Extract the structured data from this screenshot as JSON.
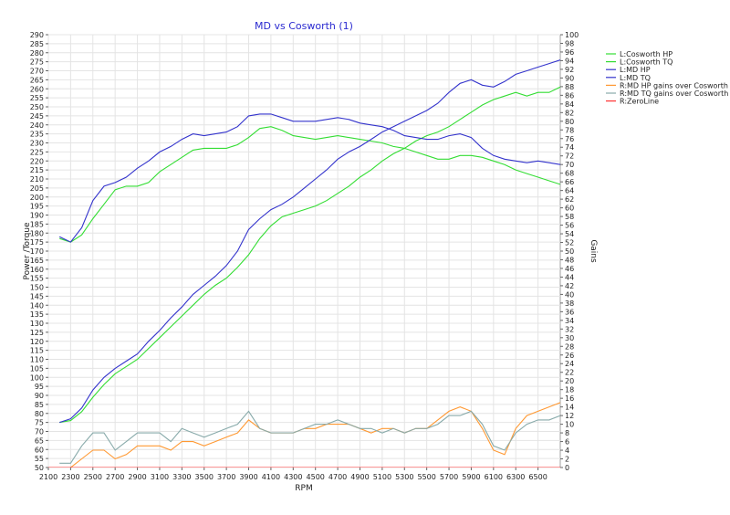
{
  "chart_data": {
    "type": "line",
    "title": "MD vs Cosworth (1)",
    "xlabel": "RPM",
    "ylabel_left": "Power /Torque",
    "ylabel_right": "Gains",
    "xlim": [
      2100,
      6700
    ],
    "ylim_left": [
      50,
      290
    ],
    "ylim_right": [
      0,
      100
    ],
    "x_ticks": [
      2100,
      2300,
      2500,
      2700,
      2900,
      3100,
      3300,
      3500,
      3700,
      3900,
      4100,
      4300,
      4500,
      4700,
      4900,
      5100,
      5300,
      5500,
      5700,
      5900,
      6100,
      6300,
      6500
    ],
    "left_tick_step": 5,
    "right_tick_step": 2,
    "grid": true,
    "legend_position": "right",
    "legend_entries": [
      "L:Cosworth HP",
      "L:Cosworth TQ",
      "L:MD HP",
      "L:MD TQ",
      "R:MD HP gains over Cosworth",
      "R:MD TQ gains over Cosworth",
      "R:ZeroLine"
    ],
    "series": [
      {
        "name": "L:Cosworth HP",
        "axis": "left",
        "color": "#33dd33",
        "x": [
          2200,
          2300,
          2400,
          2500,
          2600,
          2700,
          2800,
          2900,
          3000,
          3100,
          3200,
          3300,
          3400,
          3500,
          3600,
          3700,
          3800,
          3900,
          4000,
          4100,
          4200,
          4300,
          4400,
          4500,
          4600,
          4700,
          4800,
          4900,
          5000,
          5100,
          5200,
          5300,
          5400,
          5500,
          5600,
          5700,
          5800,
          5900,
          6000,
          6100,
          6200,
          6300,
          6400,
          6500,
          6600,
          6700
        ],
        "y": [
          75,
          76,
          81,
          89,
          96,
          102,
          106,
          110,
          116,
          122,
          128,
          134,
          140,
          146,
          151,
          155,
          161,
          168,
          177,
          184,
          189,
          191,
          193,
          195,
          198,
          202,
          206,
          211,
          215,
          220,
          224,
          227,
          231,
          234,
          236,
          239,
          243,
          247,
          251,
          254,
          256,
          258,
          256,
          258,
          258,
          261
        ]
      },
      {
        "name": "L:Cosworth TQ",
        "axis": "left",
        "color": "#33dd33",
        "x": [
          2200,
          2300,
          2400,
          2500,
          2600,
          2700,
          2800,
          2900,
          3000,
          3100,
          3200,
          3300,
          3400,
          3500,
          3600,
          3700,
          3800,
          3900,
          4000,
          4100,
          4200,
          4300,
          4400,
          4500,
          4600,
          4700,
          4800,
          4900,
          5000,
          5100,
          5200,
          5300,
          5400,
          5500,
          5600,
          5700,
          5800,
          5900,
          6000,
          6100,
          6200,
          6300,
          6400,
          6500,
          6600,
          6700
        ],
        "y": [
          177,
          175,
          179,
          188,
          196,
          204,
          206,
          206,
          208,
          214,
          218,
          222,
          226,
          227,
          227,
          227,
          229,
          233,
          238,
          239,
          237,
          234,
          233,
          232,
          233,
          234,
          233,
          232,
          231,
          230,
          228,
          227,
          225,
          223,
          221,
          221,
          223,
          223,
          222,
          220,
          218,
          215,
          213,
          211,
          209,
          207
        ]
      },
      {
        "name": "L:MD HP",
        "axis": "left",
        "color": "#3333cc",
        "x": [
          2200,
          2300,
          2400,
          2500,
          2600,
          2700,
          2800,
          2900,
          3000,
          3100,
          3200,
          3300,
          3400,
          3500,
          3600,
          3700,
          3800,
          3900,
          4000,
          4100,
          4200,
          4300,
          4400,
          4500,
          4600,
          4700,
          4800,
          4900,
          5000,
          5100,
          5200,
          5300,
          5400,
          5500,
          5600,
          5700,
          5800,
          5900,
          6000,
          6100,
          6200,
          6300,
          6400,
          6500,
          6600,
          6700
        ],
        "y": [
          75,
          77,
          83,
          93,
          100,
          105,
          109,
          113,
          120,
          126,
          133,
          139,
          146,
          151,
          156,
          162,
          170,
          182,
          188,
          193,
          196,
          200,
          205,
          210,
          215,
          221,
          225,
          228,
          232,
          236,
          239,
          242,
          245,
          248,
          252,
          258,
          263,
          265,
          262,
          261,
          264,
          268,
          270,
          272,
          274,
          276
        ]
      },
      {
        "name": "L:MD TQ",
        "axis": "left",
        "color": "#3333cc",
        "x": [
          2200,
          2300,
          2400,
          2500,
          2600,
          2700,
          2800,
          2900,
          3000,
          3100,
          3200,
          3300,
          3400,
          3500,
          3600,
          3700,
          3800,
          3900,
          4000,
          4100,
          4200,
          4300,
          4400,
          4500,
          4600,
          4700,
          4800,
          4900,
          5000,
          5100,
          5200,
          5300,
          5400,
          5500,
          5600,
          5700,
          5800,
          5900,
          6000,
          6100,
          6200,
          6300,
          6400,
          6500,
          6600,
          6700
        ],
        "y": [
          178,
          175,
          183,
          198,
          206,
          208,
          211,
          216,
          220,
          225,
          228,
          232,
          235,
          234,
          235,
          236,
          239,
          245,
          246,
          246,
          244,
          242,
          242,
          242,
          243,
          244,
          243,
          241,
          240,
          239,
          237,
          234,
          233,
          232,
          232,
          234,
          235,
          233,
          227,
          223,
          221,
          220,
          219,
          220,
          219,
          218
        ]
      },
      {
        "name": "R:MD HP gains over Cosworth",
        "axis": "right",
        "color": "#ff9933",
        "x": [
          2200,
          2300,
          2400,
          2500,
          2600,
          2700,
          2800,
          2900,
          3000,
          3100,
          3200,
          3300,
          3400,
          3500,
          3600,
          3700,
          3800,
          3900,
          4000,
          4100,
          4200,
          4300,
          4400,
          4500,
          4600,
          4700,
          4800,
          4900,
          5000,
          5100,
          5200,
          5300,
          5400,
          5500,
          5600,
          5700,
          5800,
          5900,
          6000,
          6100,
          6200,
          6300,
          6400,
          6500,
          6600,
          6700
        ],
        "y": [
          -1,
          0,
          2,
          4,
          4,
          2,
          3,
          5,
          5,
          5,
          4,
          6,
          6,
          5,
          6,
          7,
          8,
          11,
          9,
          8,
          8,
          8,
          9,
          9,
          10,
          10,
          10,
          9,
          8,
          9,
          9,
          8,
          9,
          9,
          11,
          13,
          14,
          13,
          9,
          4,
          3,
          9,
          12,
          13,
          14,
          15
        ]
      },
      {
        "name": "R:MD TQ gains over Cosworth",
        "axis": "right",
        "color": "#88aaaa",
        "x": [
          2200,
          2300,
          2400,
          2500,
          2600,
          2700,
          2800,
          2900,
          3000,
          3100,
          3200,
          3300,
          3400,
          3500,
          3600,
          3700,
          3800,
          3900,
          4000,
          4100,
          4200,
          4300,
          4400,
          4500,
          4600,
          4700,
          4800,
          4900,
          5000,
          5100,
          5200,
          5300,
          5400,
          5500,
          5600,
          5700,
          5800,
          5900,
          6000,
          6100,
          6200,
          6300,
          6400,
          6500,
          6600,
          6700
        ],
        "y": [
          1,
          1,
          5,
          8,
          8,
          4,
          6,
          8,
          8,
          8,
          6,
          9,
          8,
          7,
          8,
          9,
          10,
          13,
          9,
          8,
          8,
          8,
          9,
          10,
          10,
          11,
          10,
          9,
          9,
          8,
          9,
          8,
          9,
          9,
          10,
          12,
          12,
          13,
          10,
          5,
          4,
          8,
          10,
          11,
          11,
          12
        ]
      },
      {
        "name": "R:ZeroLine",
        "axis": "right",
        "color": "#ff3333",
        "x": [
          2100,
          6700
        ],
        "y": [
          0,
          0
        ]
      }
    ]
  }
}
